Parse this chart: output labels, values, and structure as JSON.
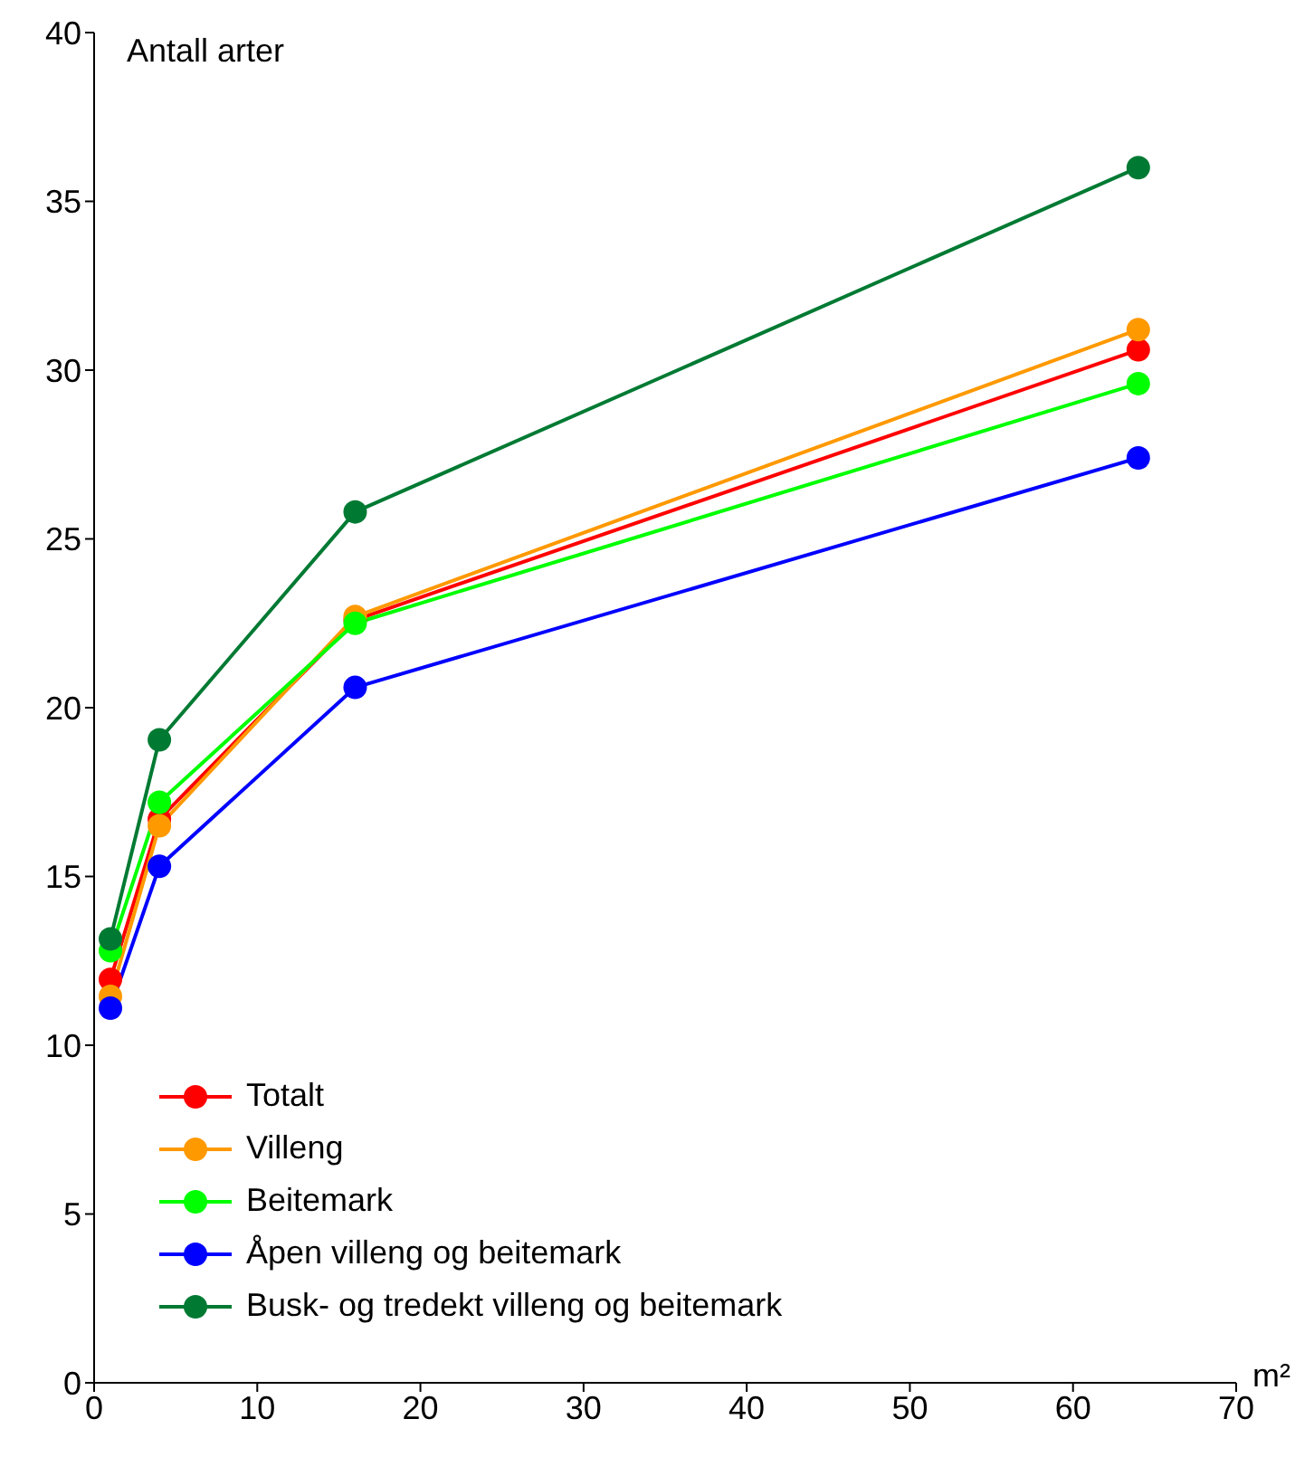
{
  "chart_data": {
    "type": "line",
    "ylabel": "Antall arter",
    "xlabel": "m²",
    "x": [
      1,
      4,
      16,
      64
    ],
    "series": [
      {
        "name": "Totalt",
        "color": "#ff0000",
        "values": [
          11.95,
          16.7,
          22.6,
          30.6
        ]
      },
      {
        "name": "Villeng",
        "color": "#ff9900",
        "values": [
          11.45,
          16.5,
          22.7,
          31.2
        ]
      },
      {
        "name": "Beitemark",
        "color": "#00ff00",
        "values": [
          12.8,
          17.2,
          22.5,
          29.6
        ]
      },
      {
        "name": "Åpen villeng og beitemark",
        "color": "#0000ff",
        "values": [
          11.1,
          15.3,
          20.6,
          27.4
        ]
      },
      {
        "name": "Busk- og tredekt villeng og beitemark",
        "color": "#007a33",
        "values": [
          13.15,
          19.05,
          25.8,
          36.0
        ]
      }
    ],
    "xlim": [
      0,
      70
    ],
    "xticks": [
      0,
      10,
      20,
      30,
      40,
      50,
      60,
      70
    ],
    "ylim": [
      0,
      40
    ],
    "yticks": [
      0,
      5,
      10,
      15,
      20,
      25,
      30,
      35,
      40
    ],
    "grid": false,
    "legend": "bottom left",
    "marker": "circle",
    "line_style": "solid"
  }
}
